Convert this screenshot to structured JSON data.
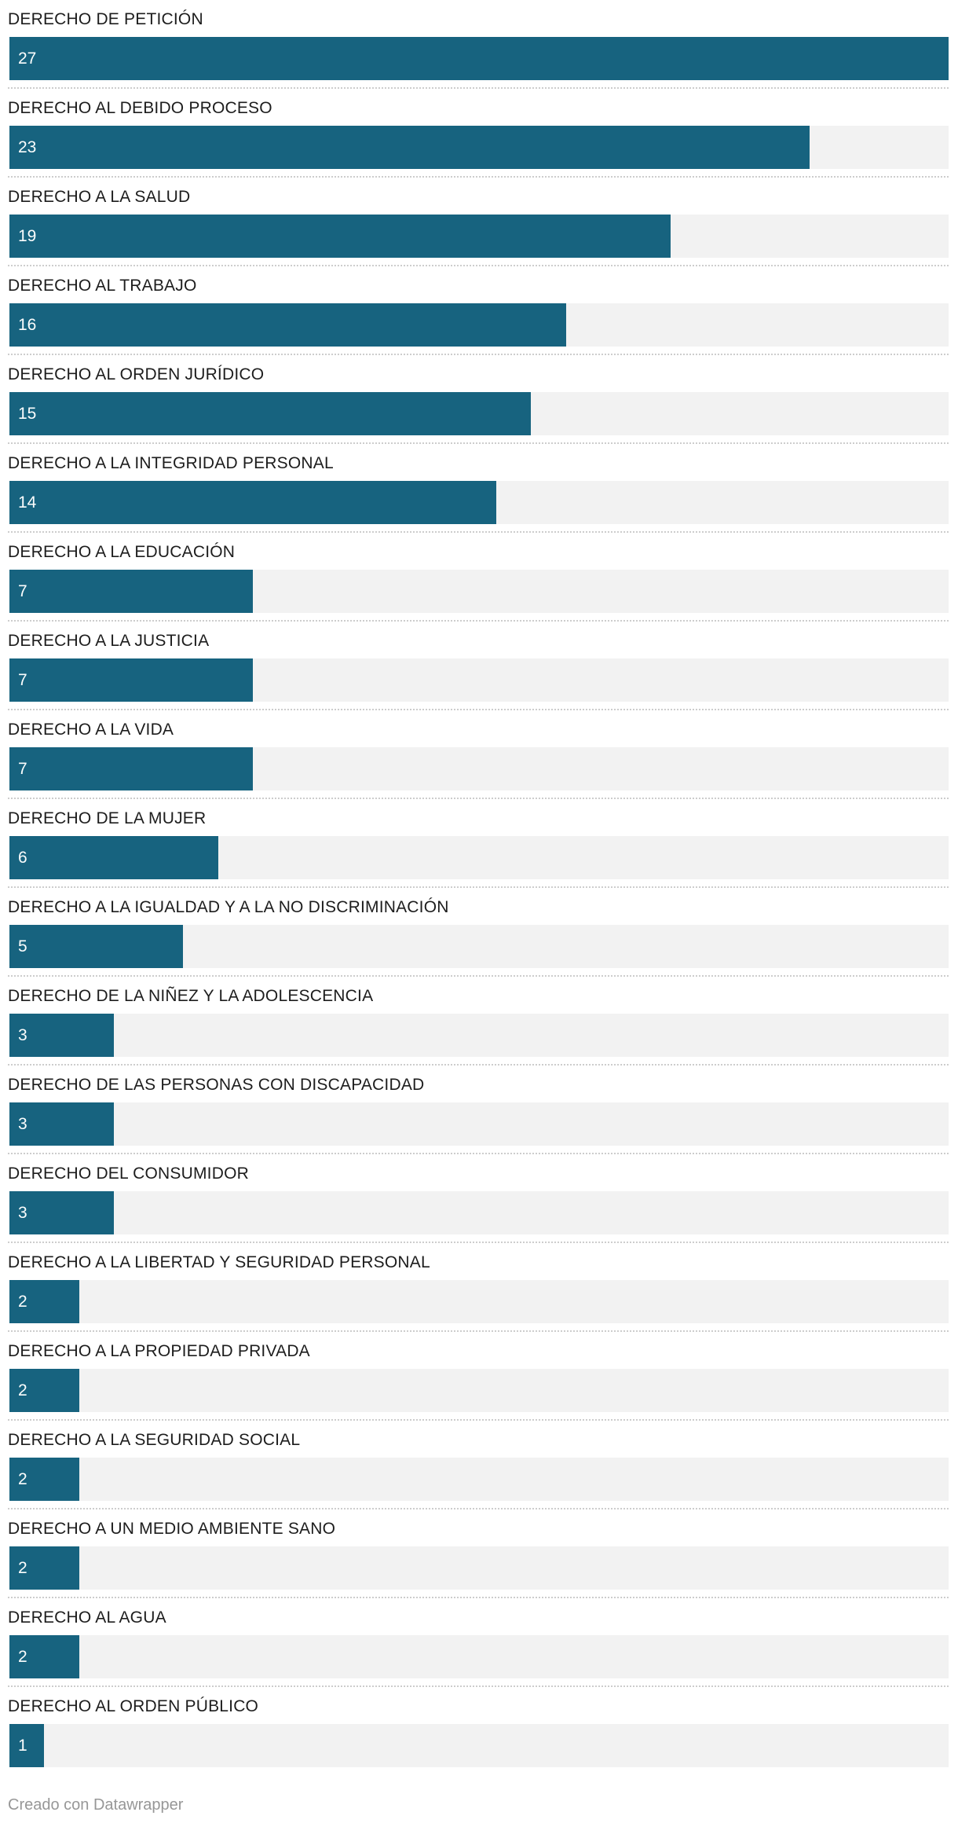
{
  "chart_data": {
    "type": "bar",
    "orientation": "horizontal",
    "title": "",
    "xlabel": "",
    "ylabel": "",
    "max": 27,
    "grid": false,
    "legend": false,
    "value_labels": "inside-bar-start",
    "categories": [
      "DERECHO DE PETICIÓN",
      "DERECHO AL DEBIDO PROCESO",
      "DERECHO A LA SALUD",
      "DERECHO AL TRABAJO",
      "DERECHO AL ORDEN JURÍDICO",
      "DERECHO A LA INTEGRIDAD PERSONAL",
      "DERECHO A LA EDUCACIÓN",
      "DERECHO A LA JUSTICIA",
      "DERECHO A LA VIDA",
      "DERECHO DE LA MUJER",
      "DERECHO A LA IGUALDAD Y A LA NO DISCRIMINACIÓN",
      "DERECHO DE LA NIÑEZ Y LA ADOLESCENCIA",
      "DERECHO DE LAS PERSONAS CON DISCAPACIDAD",
      "DERECHO DEL CONSUMIDOR",
      "DERECHO A LA LIBERTAD Y SEGURIDAD PERSONAL",
      "DERECHO A LA PROPIEDAD PRIVADA",
      "DERECHO A LA SEGURIDAD SOCIAL",
      "DERECHO A UN MEDIO AMBIENTE SANO",
      "DERECHO AL AGUA",
      "DERECHO AL ORDEN PÚBLICO"
    ],
    "values": [
      27,
      23,
      19,
      16,
      15,
      14,
      7,
      7,
      7,
      6,
      5,
      3,
      3,
      3,
      2,
      2,
      2,
      2,
      2,
      1
    ]
  },
  "colors": {
    "bar": "#17637f",
    "track": "#f2f2f2",
    "separator": "#cdcdcd",
    "label_text": "#1d1d1d",
    "value_text": "#fbfdfd",
    "footer_text": "#979797"
  },
  "footer": {
    "credit": "Creado con Datawrapper"
  }
}
